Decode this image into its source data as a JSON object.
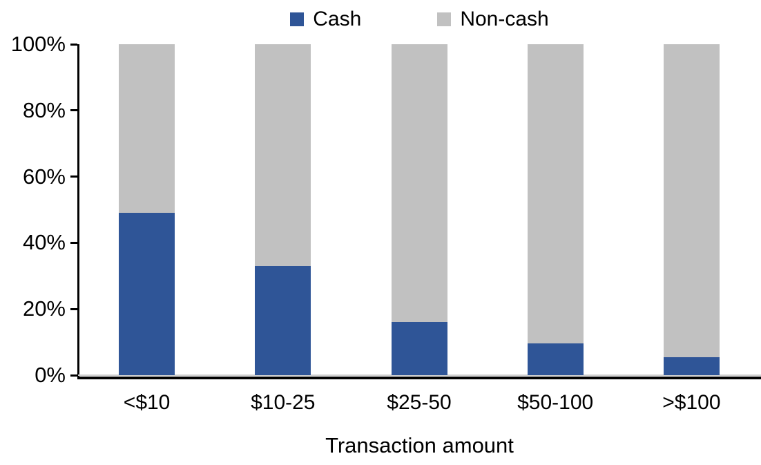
{
  "chart_data": {
    "type": "bar",
    "stacked": true,
    "title": "",
    "categories": [
      "<$10",
      "$10-25",
      "$25-50",
      "$50-100",
      ">$100"
    ],
    "series": [
      {
        "name": "Cash",
        "color": "#2F5597",
        "values": [
          49,
          33,
          16,
          9.5,
          5.5
        ]
      },
      {
        "name": "Non-cash",
        "color": "#C1C1C1",
        "values": [
          51,
          67,
          84,
          90.5,
          94.5
        ]
      }
    ],
    "xlabel": "Transaction amount",
    "ylabel": "",
    "ylim": [
      0,
      100
    ],
    "ytick_labels": [
      "0%",
      "20%",
      "40%",
      "60%",
      "80%",
      "100%"
    ],
    "legend_position": "top",
    "grid": false
  },
  "style": {
    "background": "#FFFFFF",
    "axis_color": "#000000",
    "text_color": "#000000"
  }
}
